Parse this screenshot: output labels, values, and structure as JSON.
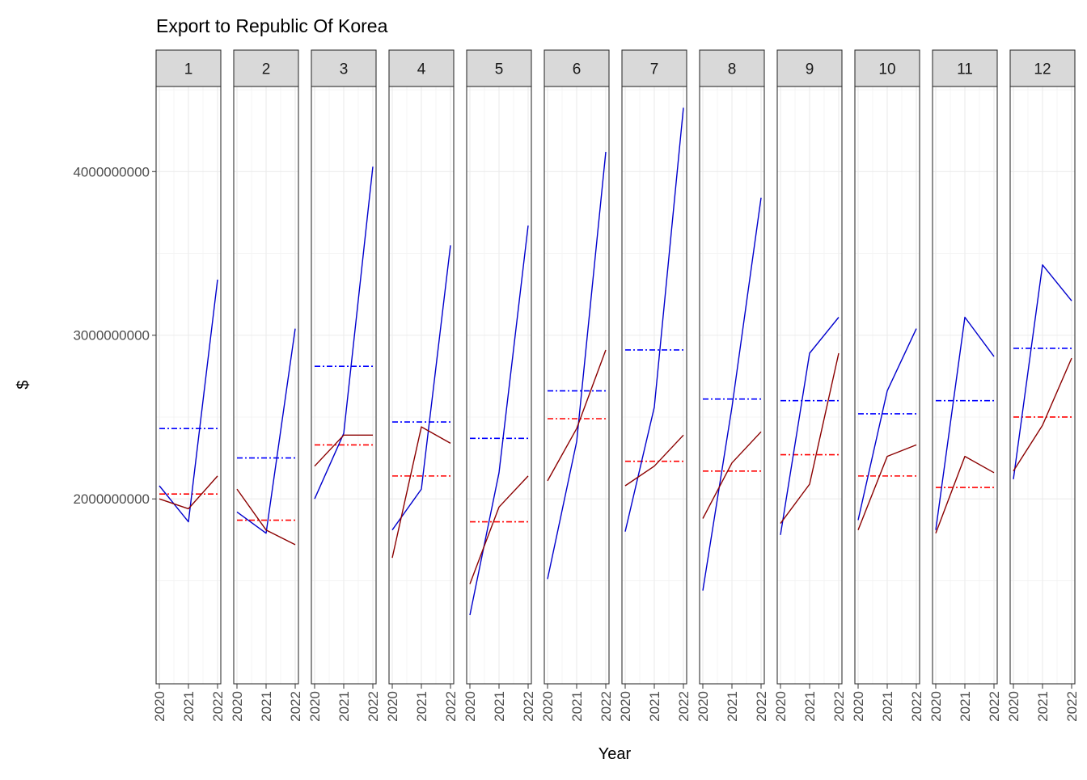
{
  "chart_data": {
    "type": "line",
    "title": "Export to Republic Of Korea",
    "xlabel": "Year",
    "ylabel": "$",
    "x": [
      "2020",
      "2021",
      "2022"
    ],
    "y_ticks": [
      2000000000,
      3000000000,
      4000000000
    ],
    "y_tick_labels": [
      "2000000000",
      "3000000000",
      "4000000000"
    ],
    "ylim": [
      870000000,
      4520000000
    ],
    "grid": true,
    "facet_labels": [
      "1",
      "2",
      "3",
      "4",
      "5",
      "6",
      "7",
      "8",
      "9",
      "10",
      "11",
      "12"
    ],
    "colors": {
      "blue": "#0000cd",
      "red": "#8b0000",
      "blue_mean": "#0000ff",
      "red_mean": "#ff0000"
    },
    "facets": [
      {
        "label": "1",
        "series": [
          {
            "color": "blue",
            "values": [
              2080000000,
              1860000000,
              3340000000
            ]
          },
          {
            "color": "red",
            "values": [
              2000000000,
              1940000000,
              2140000000
            ]
          }
        ],
        "means": [
          {
            "color": "blue_mean",
            "value": 2430000000
          },
          {
            "color": "red_mean",
            "value": 2030000000
          }
        ]
      },
      {
        "label": "2",
        "series": [
          {
            "color": "blue",
            "values": [
              1920000000,
              1790000000,
              3040000000
            ]
          },
          {
            "color": "red",
            "values": [
              2060000000,
              1810000000,
              1720000000
            ]
          }
        ],
        "means": [
          {
            "color": "blue_mean",
            "value": 2250000000
          },
          {
            "color": "red_mean",
            "value": 1870000000
          }
        ]
      },
      {
        "label": "3",
        "series": [
          {
            "color": "blue",
            "values": [
              2000000000,
              2400000000,
              4030000000
            ]
          },
          {
            "color": "red",
            "values": [
              2200000000,
              2390000000,
              2390000000
            ]
          }
        ],
        "means": [
          {
            "color": "blue_mean",
            "value": 2810000000
          },
          {
            "color": "red_mean",
            "value": 2330000000
          }
        ]
      },
      {
        "label": "4",
        "series": [
          {
            "color": "blue",
            "values": [
              1810000000,
              2060000000,
              3550000000
            ]
          },
          {
            "color": "red",
            "values": [
              1640000000,
              2440000000,
              2340000000
            ]
          }
        ],
        "means": [
          {
            "color": "blue_mean",
            "value": 2470000000
          },
          {
            "color": "red_mean",
            "value": 2140000000
          }
        ]
      },
      {
        "label": "5",
        "series": [
          {
            "color": "blue",
            "values": [
              1290000000,
              2160000000,
              3670000000
            ]
          },
          {
            "color": "red",
            "values": [
              1480000000,
              1950000000,
              2140000000
            ]
          }
        ],
        "means": [
          {
            "color": "blue_mean",
            "value": 2370000000
          },
          {
            "color": "red_mean",
            "value": 1860000000
          }
        ]
      },
      {
        "label": "6",
        "series": [
          {
            "color": "blue",
            "values": [
              1510000000,
              2350000000,
              4120000000
            ]
          },
          {
            "color": "red",
            "values": [
              2110000000,
              2430000000,
              2910000000
            ]
          }
        ],
        "means": [
          {
            "color": "blue_mean",
            "value": 2660000000
          },
          {
            "color": "red_mean",
            "value": 2490000000
          }
        ]
      },
      {
        "label": "7",
        "series": [
          {
            "color": "blue",
            "values": [
              1800000000,
              2560000000,
              4390000000
            ]
          },
          {
            "color": "red",
            "values": [
              2080000000,
              2200000000,
              2390000000
            ]
          }
        ],
        "means": [
          {
            "color": "blue_mean",
            "value": 2910000000
          },
          {
            "color": "red_mean",
            "value": 2230000000
          }
        ]
      },
      {
        "label": "8",
        "series": [
          {
            "color": "blue",
            "values": [
              1440000000,
              2560000000,
              3840000000
            ]
          },
          {
            "color": "red",
            "values": [
              1880000000,
              2220000000,
              2410000000
            ]
          }
        ],
        "means": [
          {
            "color": "blue_mean",
            "value": 2610000000
          },
          {
            "color": "red_mean",
            "value": 2170000000
          }
        ]
      },
      {
        "label": "9",
        "series": [
          {
            "color": "blue",
            "values": [
              1780000000,
              2890000000,
              3110000000
            ]
          },
          {
            "color": "red",
            "values": [
              1850000000,
              2090000000,
              2890000000
            ]
          }
        ],
        "means": [
          {
            "color": "blue_mean",
            "value": 2600000000
          },
          {
            "color": "red_mean",
            "value": 2270000000
          }
        ]
      },
      {
        "label": "10",
        "series": [
          {
            "color": "blue",
            "values": [
              1870000000,
              2660000000,
              3040000000
            ]
          },
          {
            "color": "red",
            "values": [
              1810000000,
              2260000000,
              2330000000
            ]
          }
        ],
        "means": [
          {
            "color": "blue_mean",
            "value": 2520000000
          },
          {
            "color": "red_mean",
            "value": 2140000000
          }
        ]
      },
      {
        "label": "11",
        "series": [
          {
            "color": "blue",
            "values": [
              1810000000,
              3110000000,
              2870000000
            ]
          },
          {
            "color": "red",
            "values": [
              1790000000,
              2260000000,
              2160000000
            ]
          }
        ],
        "means": [
          {
            "color": "blue_mean",
            "value": 2600000000
          },
          {
            "color": "red_mean",
            "value": 2070000000
          }
        ]
      },
      {
        "label": "12",
        "series": [
          {
            "color": "blue",
            "values": [
              2120000000,
              3430000000,
              3210000000
            ]
          },
          {
            "color": "red",
            "values": [
              2170000000,
              2450000000,
              2860000000
            ]
          }
        ],
        "means": [
          {
            "color": "blue_mean",
            "value": 2920000000
          },
          {
            "color": "red_mean",
            "value": 2500000000
          }
        ]
      }
    ]
  }
}
